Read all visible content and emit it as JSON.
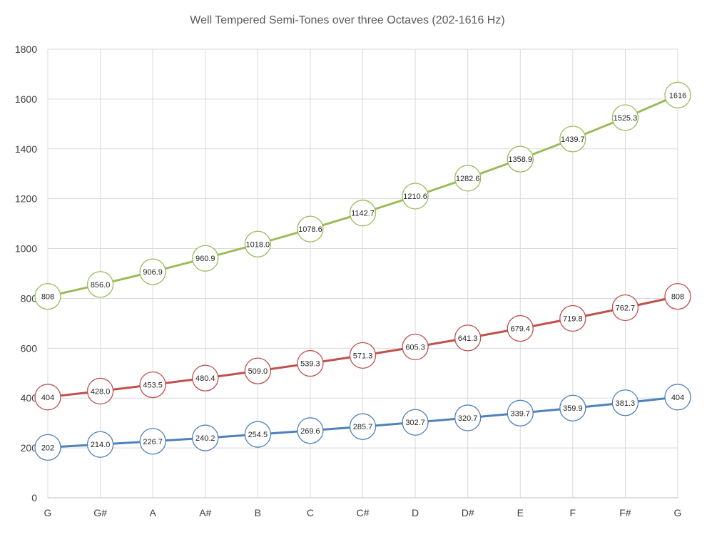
{
  "chart_data": {
    "type": "line",
    "title": "Well Tempered  Semi-Tones over three Octaves (202-1616 Hz)",
    "xlabel": "",
    "ylabel": "",
    "categories": [
      "G",
      "G#",
      "A",
      "A#",
      "B",
      "C",
      "C#",
      "D",
      "D#",
      "E",
      "F",
      "F#",
      "G"
    ],
    "ylim": [
      0,
      1800
    ],
    "yticks": [
      0,
      200,
      400,
      600,
      800,
      1000,
      1200,
      1400,
      1600,
      1800
    ],
    "grid": true,
    "legend": "none",
    "series": [
      {
        "color": "#4f81bd",
        "values": [
          202,
          214.0,
          226.7,
          240.2,
          254.5,
          269.6,
          285.7,
          302.7,
          320.7,
          339.7,
          359.9,
          381.3,
          404
        ],
        "labels": [
          "202",
          "214.0",
          "226.7",
          "240.2",
          "254.5",
          "269.6",
          "285.7",
          "302.7",
          "320.7",
          "339.7",
          "359.9",
          "381.3",
          "404"
        ]
      },
      {
        "color": "#c0504d",
        "values": [
          404,
          428.0,
          453.5,
          480.4,
          509.0,
          539.3,
          571.3,
          605.3,
          641.3,
          679.4,
          719.8,
          762.7,
          808
        ],
        "labels": [
          "404",
          "428.0",
          "453.5",
          "480.4",
          "509.0",
          "539.3",
          "571.3",
          "605.3",
          "641.3",
          "679.4",
          "719.8",
          "762.7",
          "808"
        ]
      },
      {
        "color": "#9bbb59",
        "values": [
          808,
          856.0,
          906.9,
          960.9,
          1018.0,
          1078.6,
          1142.7,
          1210.6,
          1282.6,
          1358.9,
          1439.7,
          1525.3,
          1616
        ],
        "labels": [
          "808",
          "856.0",
          "906.9",
          "960.9",
          "1018.0",
          "1078.6",
          "1142.7",
          "1210.6",
          "1282.6",
          "1358.9",
          "1439.7",
          "1525.3",
          "1616"
        ]
      }
    ]
  }
}
